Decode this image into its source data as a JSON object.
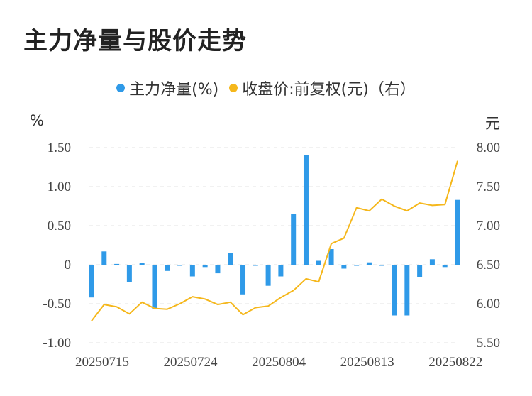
{
  "title": "主力净量与股价走势",
  "legend": {
    "net": "主力净量(%)",
    "price": "收盘价:前复权(元)（右）"
  },
  "units": {
    "left": "%",
    "right": "元"
  },
  "colors": {
    "bar": "#2f9ae8",
    "line": "#f5b71b",
    "grid": "#e3e3e3"
  },
  "chart_data": {
    "type": "bar+line",
    "x_tick_labels": [
      "20250715",
      "20250724",
      "20250804",
      "20250813",
      "20250822"
    ],
    "left_axis": {
      "ticks": [
        "1.50",
        "1.00",
        "0.50",
        "0",
        "-0.50",
        "-1.00"
      ],
      "ylim": [
        -1.0,
        1.5
      ]
    },
    "right_axis": {
      "ticks": [
        "8.00",
        "7.50",
        "7.00",
        "6.50",
        "6.00",
        "5.50"
      ],
      "ylim": [
        5.5,
        8.0
      ]
    },
    "grid": true,
    "legend_position": "top-center",
    "series": [
      {
        "name": "主力净量(%)",
        "type": "bar",
        "axis": "left",
        "values": [
          -0.42,
          0.17,
          0.01,
          -0.22,
          0.02,
          -0.57,
          -0.08,
          -0.01,
          -0.15,
          -0.03,
          -0.11,
          0.15,
          -0.38,
          -0.01,
          -0.27,
          -0.15,
          0.65,
          1.4,
          0.05,
          0.2,
          -0.05,
          -0.01,
          0.03,
          -0.01,
          -0.65,
          -0.65,
          -0.16,
          0.07,
          -0.03,
          0.83
        ]
      },
      {
        "name": "收盘价:前复权(元)（右）",
        "type": "line",
        "axis": "right",
        "values": [
          5.78,
          5.99,
          5.96,
          5.87,
          6.02,
          5.94,
          5.93,
          6.0,
          6.09,
          6.06,
          5.99,
          6.02,
          5.86,
          5.95,
          5.97,
          6.08,
          6.17,
          6.32,
          6.28,
          6.77,
          6.84,
          7.23,
          7.19,
          7.34,
          7.25,
          7.19,
          7.29,
          7.26,
          7.27,
          7.83
        ]
      }
    ]
  }
}
